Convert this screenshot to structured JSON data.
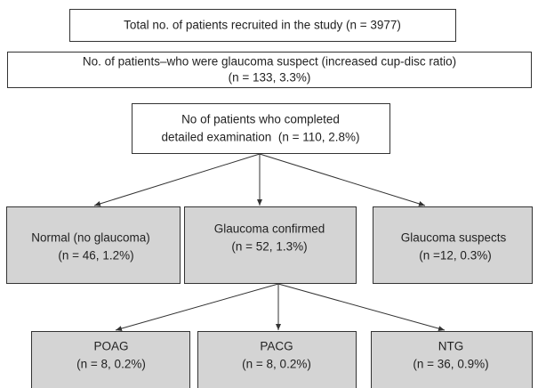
{
  "nodes": [
    {
      "lines": [
        "Total no. of patients recruited in the study (n = 3977)"
      ]
    },
    {
      "lines": [
        "No. of patients–who were glaucoma suspect (increased cup-disc ratio)",
        "(n = 133, 3.3%)"
      ]
    },
    {
      "lines": [
        "No of patients who completed",
        "detailed examination  (n = 110, 2.8%)"
      ]
    },
    {
      "lines": [
        "Normal (no glaucoma)",
        "(n = 46, 1.2%)"
      ]
    },
    {
      "lines": [
        "Glaucoma confirmed",
        "(n = 52, 1.3%)"
      ]
    },
    {
      "lines": [
        "Glaucoma suspects",
        "(n =12, 0.3%)"
      ]
    },
    {
      "lines": [
        "POAG",
        "(n = 8, 0.2%)"
      ]
    },
    {
      "lines": [
        "PACG",
        "(n = 8, 0.2%)"
      ]
    },
    {
      "lines": [
        "NTG",
        "(n = 36, 0.9%)"
      ]
    }
  ]
}
